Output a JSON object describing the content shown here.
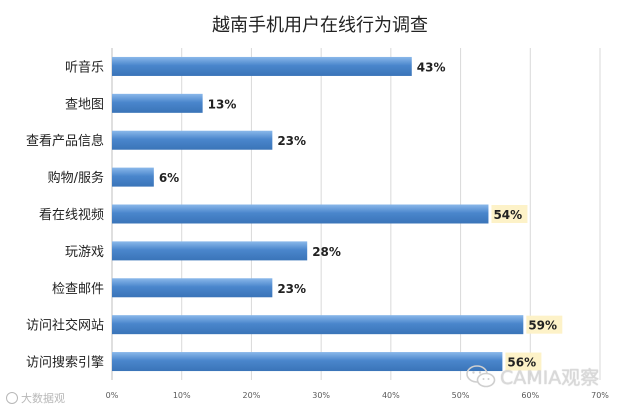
{
  "chart_data": {
    "type": "bar",
    "orientation": "horizontal",
    "title": "越南手机用户在线行为调查",
    "categories": [
      "听音乐",
      "查地图",
      "查看产品信息",
      "购物/服务",
      "看在线视频",
      "玩游戏",
      "检查邮件",
      "访问社交网站",
      "访问搜索引擎"
    ],
    "values": [
      43,
      13,
      23,
      6,
      54,
      28,
      23,
      59,
      56
    ],
    "value_labels": [
      "43%",
      "13%",
      "23%",
      "6%",
      "54%",
      "28%",
      "23%",
      "59%",
      "56%"
    ],
    "highlighted_labels": [
      false,
      false,
      false,
      false,
      true,
      false,
      false,
      true,
      true
    ],
    "xlim": [
      0,
      70
    ],
    "x_ticks": [
      0,
      10,
      20,
      30,
      40,
      50,
      60,
      70
    ],
    "x_tick_labels": [
      "0%",
      "10%",
      "20%",
      "30%",
      "40%",
      "50%",
      "60%",
      "70%"
    ],
    "xlabel": "",
    "ylabel": "",
    "grid": true,
    "legend": "none",
    "colors": {
      "bar": "#4a86cc",
      "bar_light": "#7fb0e6",
      "highlight_label_bg": "#fdf2c8",
      "grid": "#d9d9d9"
    }
  },
  "watermarks": {
    "left_text": "大数据观",
    "right_text": "CAMIA观察"
  }
}
